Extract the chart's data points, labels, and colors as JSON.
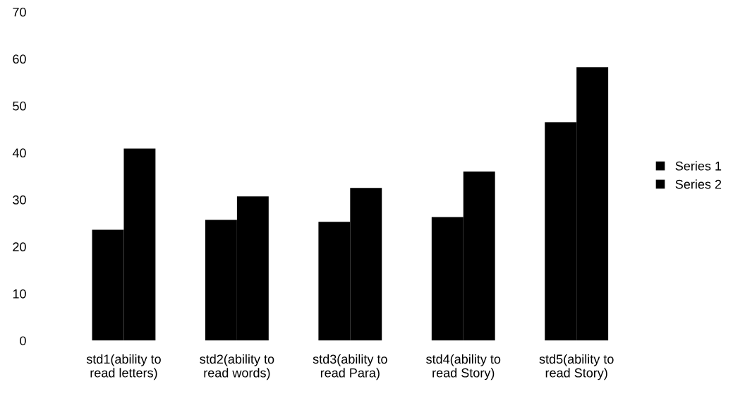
{
  "chart_data": {
    "type": "bar",
    "categories": [
      "std1(ability to\nread letters)",
      "std2(ability to\nread words)",
      "std3(ability to\nread Para)",
      "std4(ability to\nread Story)",
      "std5(ability to\nread Story)"
    ],
    "series": [
      {
        "name": "Series 1",
        "color": "#000000",
        "values": [
          23.6,
          25.7,
          25.3,
          26.3,
          46.5
        ]
      },
      {
        "name": "Series 2",
        "color": "#000000",
        "values": [
          40.9,
          30.7,
          32.5,
          36.0,
          58.2
        ]
      }
    ],
    "ylim": [
      0,
      70
    ],
    "yticks": [
      0,
      10,
      20,
      30,
      40,
      50,
      60,
      70
    ],
    "grid": false,
    "legend": "right"
  }
}
